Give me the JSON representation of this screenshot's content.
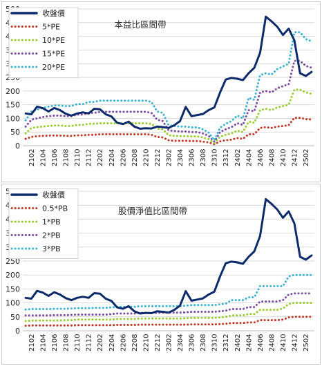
{
  "chart_data": [
    {
      "type": "line",
      "title": "本益比區間帶",
      "ylim": [
        0,
        500
      ],
      "yticks": [
        0,
        50,
        100,
        150,
        200,
        250,
        300,
        350,
        400,
        450,
        500
      ],
      "x": [
        "2101",
        "2102",
        "2103",
        "2104",
        "2105",
        "2106",
        "2107",
        "2108",
        "2109",
        "2110",
        "2111",
        "2112",
        "2201",
        "2202",
        "2203",
        "2204",
        "2205",
        "2206",
        "2207",
        "2208",
        "2209",
        "2210",
        "2211",
        "2212",
        "2301",
        "2302",
        "2303",
        "2304",
        "2305",
        "2306",
        "2307",
        "2308",
        "2309",
        "2310",
        "2311",
        "2312",
        "2401",
        "2402",
        "2403",
        "2404",
        "2405",
        "2406",
        "2407",
        "2408",
        "2409",
        "2410",
        "2411",
        "2412",
        "2501",
        "2502",
        "2503"
      ],
      "xtick_labels": [
        "2102",
        "2104",
        "2106",
        "2108",
        "2110",
        "2112",
        "2202",
        "2204",
        "2206",
        "2208",
        "2210",
        "2212",
        "2302",
        "2304",
        "2306",
        "2308",
        "2310",
        "2312",
        "2402",
        "2404",
        "2406",
        "2408",
        "2410",
        "2412",
        "2502"
      ],
      "grid": true,
      "legend_position": "top-left",
      "series": [
        {
          "name": "收盤價",
          "color": "#0d2a6b",
          "style": "solid",
          "values": [
            118,
            115,
            143,
            137,
            125,
            138,
            130,
            117,
            110,
            118,
            122,
            118,
            135,
            133,
            115,
            107,
            84,
            79,
            88,
            70,
            62,
            64,
            63,
            70,
            68,
            65,
            75,
            90,
            142,
            108,
            112,
            116,
            130,
            140,
            195,
            242,
            248,
            245,
            240,
            265,
            285,
            340,
            472,
            455,
            435,
            405,
            428,
            385,
            265,
            255,
            270
          ]
        },
        {
          "name": "5*PE",
          "color": "#c0392b",
          "style": "dotted",
          "values": [
            25,
            32,
            35,
            36,
            37,
            37,
            37,
            36,
            36,
            38,
            38,
            40,
            40,
            42,
            42,
            42,
            42,
            42,
            42,
            42,
            42,
            42,
            40,
            32,
            30,
            20,
            18,
            18,
            18,
            17,
            17,
            15,
            12,
            5,
            16,
            20,
            22,
            28,
            25,
            42,
            42,
            65,
            68,
            65,
            70,
            72,
            75,
            102,
            102,
            97,
            96
          ]
        },
        {
          "name": "10*PE",
          "color": "#9acd32",
          "style": "dotted",
          "values": [
            45,
            65,
            68,
            70,
            72,
            74,
            74,
            72,
            72,
            76,
            76,
            80,
            80,
            82,
            82,
            82,
            82,
            82,
            82,
            82,
            82,
            82,
            80,
            62,
            60,
            38,
            36,
            35,
            35,
            34,
            34,
            30,
            24,
            10,
            33,
            40,
            45,
            55,
            50,
            88,
            84,
            130,
            135,
            130,
            140,
            145,
            150,
            205,
            205,
            195,
            190
          ]
        },
        {
          "name": "15*PE",
          "color": "#7b4ea3",
          "style": "dotted",
          "values": [
            70,
            95,
            100,
            105,
            108,
            110,
            110,
            108,
            108,
            114,
            114,
            120,
            120,
            124,
            124,
            124,
            124,
            124,
            124,
            124,
            124,
            124,
            120,
            95,
            90,
            56,
            54,
            52,
            52,
            50,
            50,
            45,
            36,
            15,
            50,
            60,
            68,
            82,
            76,
            130,
            126,
            195,
            200,
            195,
            210,
            218,
            225,
            310,
            310,
            292,
            285
          ]
        },
        {
          "name": "20*PE",
          "color": "#3cb4d0",
          "style": "dotted",
          "values": [
            93,
            125,
            132,
            138,
            143,
            147,
            147,
            145,
            145,
            152,
            152,
            160,
            160,
            165,
            165,
            165,
            165,
            165,
            165,
            165,
            165,
            165,
            160,
            125,
            120,
            75,
            72,
            70,
            70,
            67,
            67,
            60,
            48,
            20,
            66,
            80,
            90,
            110,
            100,
            175,
            168,
            258,
            265,
            260,
            280,
            290,
            300,
            415,
            415,
            390,
            382
          ]
        }
      ]
    },
    {
      "type": "line",
      "title": "股價淨值比區間帶",
      "ylim": [
        0,
        500
      ],
      "yticks": [
        0,
        50,
        100,
        150,
        200,
        250,
        300,
        350,
        400,
        450,
        500
      ],
      "x": [
        "2101",
        "2102",
        "2103",
        "2104",
        "2105",
        "2106",
        "2107",
        "2108",
        "2109",
        "2110",
        "2111",
        "2112",
        "2201",
        "2202",
        "2203",
        "2204",
        "2205",
        "2206",
        "2207",
        "2208",
        "2209",
        "2210",
        "2211",
        "2212",
        "2301",
        "2302",
        "2303",
        "2304",
        "2305",
        "2306",
        "2307",
        "2308",
        "2309",
        "2310",
        "2311",
        "2312",
        "2401",
        "2402",
        "2403",
        "2404",
        "2405",
        "2406",
        "2407",
        "2408",
        "2409",
        "2410",
        "2411",
        "2412",
        "2501",
        "2502",
        "2503"
      ],
      "xtick_labels": [
        "2102",
        "2104",
        "2106",
        "2108",
        "2110",
        "2112",
        "2202",
        "2204",
        "2206",
        "2208",
        "2210",
        "2212",
        "2302",
        "2304",
        "2306",
        "2308",
        "2310",
        "2312",
        "2402",
        "2404",
        "2406",
        "2408",
        "2410",
        "2412",
        "2502"
      ],
      "grid": true,
      "legend_position": "top-left",
      "series": [
        {
          "name": "收盤價",
          "color": "#0d2a6b",
          "style": "solid",
          "values": [
            118,
            115,
            143,
            137,
            125,
            138,
            130,
            117,
            110,
            118,
            122,
            118,
            135,
            133,
            115,
            107,
            84,
            79,
            88,
            70,
            62,
            64,
            63,
            70,
            68,
            65,
            75,
            90,
            142,
            108,
            112,
            116,
            130,
            140,
            195,
            242,
            248,
            245,
            240,
            265,
            285,
            340,
            472,
            455,
            435,
            405,
            428,
            385,
            265,
            255,
            270
          ]
        },
        {
          "name": "0.5*PB",
          "color": "#c0392b",
          "style": "dotted",
          "values": [
            18,
            19,
            19,
            19,
            19,
            19,
            19,
            19,
            19,
            20,
            20,
            20,
            20,
            20,
            20,
            20,
            21,
            21,
            21,
            21,
            22,
            22,
            22,
            22,
            22,
            22,
            22,
            22,
            22,
            23,
            23,
            23,
            23,
            23,
            24,
            25,
            28,
            28,
            28,
            30,
            30,
            38,
            38,
            38,
            38,
            40,
            48,
            50,
            50,
            50,
            50
          ]
        },
        {
          "name": "1*PB",
          "color": "#9acd32",
          "style": "dotted",
          "values": [
            35,
            37,
            37,
            37,
            37,
            37,
            37,
            38,
            38,
            40,
            40,
            40,
            40,
            40,
            40,
            40,
            42,
            42,
            42,
            42,
            44,
            44,
            44,
            44,
            44,
            44,
            44,
            44,
            45,
            46,
            46,
            46,
            46,
            46,
            48,
            50,
            55,
            55,
            55,
            60,
            60,
            75,
            75,
            75,
            75,
            80,
            96,
            100,
            100,
            100,
            100
          ]
        },
        {
          "name": "2*PB",
          "color": "#7b4ea3",
          "style": "dotted",
          "values": [
            55,
            55,
            55,
            55,
            55,
            56,
            56,
            56,
            57,
            58,
            58,
            58,
            58,
            58,
            58,
            60,
            62,
            62,
            62,
            62,
            64,
            64,
            64,
            64,
            65,
            65,
            65,
            65,
            66,
            68,
            68,
            68,
            68,
            68,
            70,
            72,
            78,
            78,
            78,
            85,
            85,
            105,
            105,
            105,
            105,
            110,
            130,
            134,
            134,
            134,
            134
          ]
        },
        {
          "name": "3*PB",
          "color": "#3cb4d0",
          "style": "dotted",
          "values": [
            76,
            78,
            78,
            78,
            78,
            79,
            79,
            79,
            80,
            81,
            81,
            81,
            82,
            82,
            82,
            84,
            86,
            86,
            86,
            86,
            88,
            88,
            88,
            88,
            88,
            88,
            88,
            88,
            90,
            92,
            92,
            92,
            92,
            92,
            95,
            97,
            110,
            110,
            110,
            120,
            120,
            160,
            160,
            160,
            160,
            160,
            195,
            200,
            200,
            200,
            200
          ]
        }
      ]
    }
  ]
}
